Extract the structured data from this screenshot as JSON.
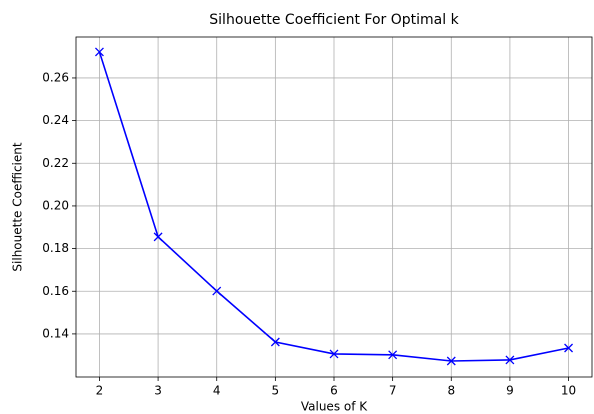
{
  "chart_data": {
    "type": "line",
    "title": "Silhouette Coefficient For Optimal k",
    "xlabel": "Values of K",
    "ylabel": "Silhouette Coefficient",
    "x": [
      2,
      3,
      4,
      5,
      6,
      7,
      8,
      9,
      10
    ],
    "series": [
      {
        "name": "Silhouette Coefficient",
        "color": "#0000ff",
        "marker": "x",
        "values": [
          0.2722,
          0.1855,
          0.1601,
          0.1362,
          0.1306,
          0.1302,
          0.1273,
          0.1278,
          0.1334
        ]
      }
    ],
    "xlim": [
      1.6,
      10.4
    ],
    "xticks": [
      2,
      3,
      4,
      5,
      6,
      7,
      8,
      9,
      10
    ],
    "ylim": [
      0.1198,
      0.2792
    ],
    "yticks": [
      0.14,
      0.16,
      0.18,
      {
        "value": 0.2,
        "label": "0.20"
      },
      0.22,
      0.24,
      0.26
    ],
    "grid": true
  }
}
